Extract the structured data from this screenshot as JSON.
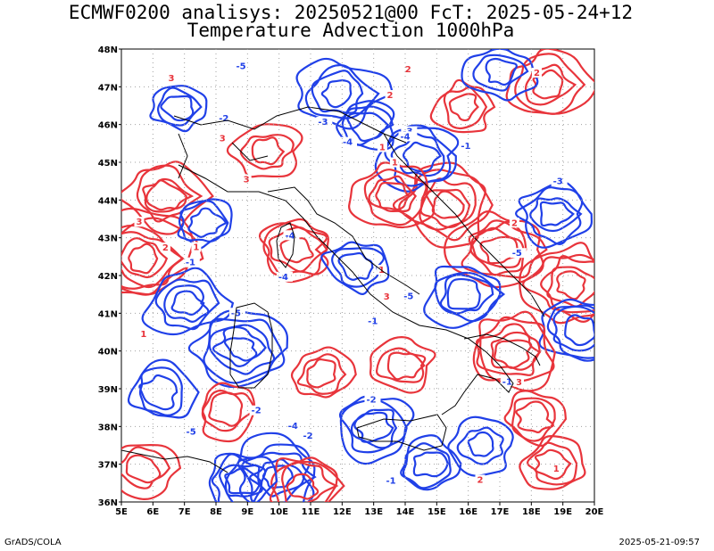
{
  "header": {
    "title_line1": "ECMWF0200 analisys: 20250521@00 FcT: 2025-05-24+12",
    "title_line2": "Temperature Advection 1000hPa"
  },
  "map": {
    "lon_labels": [
      "5E",
      "6E",
      "7E",
      "8E",
      "9E",
      "10E",
      "11E",
      "12E",
      "13E",
      "14E",
      "15E",
      "16E",
      "17E",
      "18E",
      "19E",
      "20E"
    ],
    "lat_labels": [
      "48N",
      "47N",
      "46N",
      "45N",
      "44N",
      "43N",
      "42N",
      "41N",
      "40N",
      "39N",
      "38N",
      "37N",
      "36N"
    ],
    "extent": {
      "lon_min": 5,
      "lon_max": 20,
      "lat_min": 36,
      "lat_max": 48
    },
    "colors": {
      "warm_advection": "#e8343b",
      "cold_advection": "#2040e8",
      "coastline": "#000000",
      "grid": "#a0a0a0"
    },
    "contour_labels": [
      "-1",
      "-2",
      "-3",
      "-4",
      "-5",
      "1",
      "2",
      "3"
    ]
  },
  "footer": {
    "credit": "GrADS/COLA",
    "timestamp": "2025-05-21-09:57"
  }
}
